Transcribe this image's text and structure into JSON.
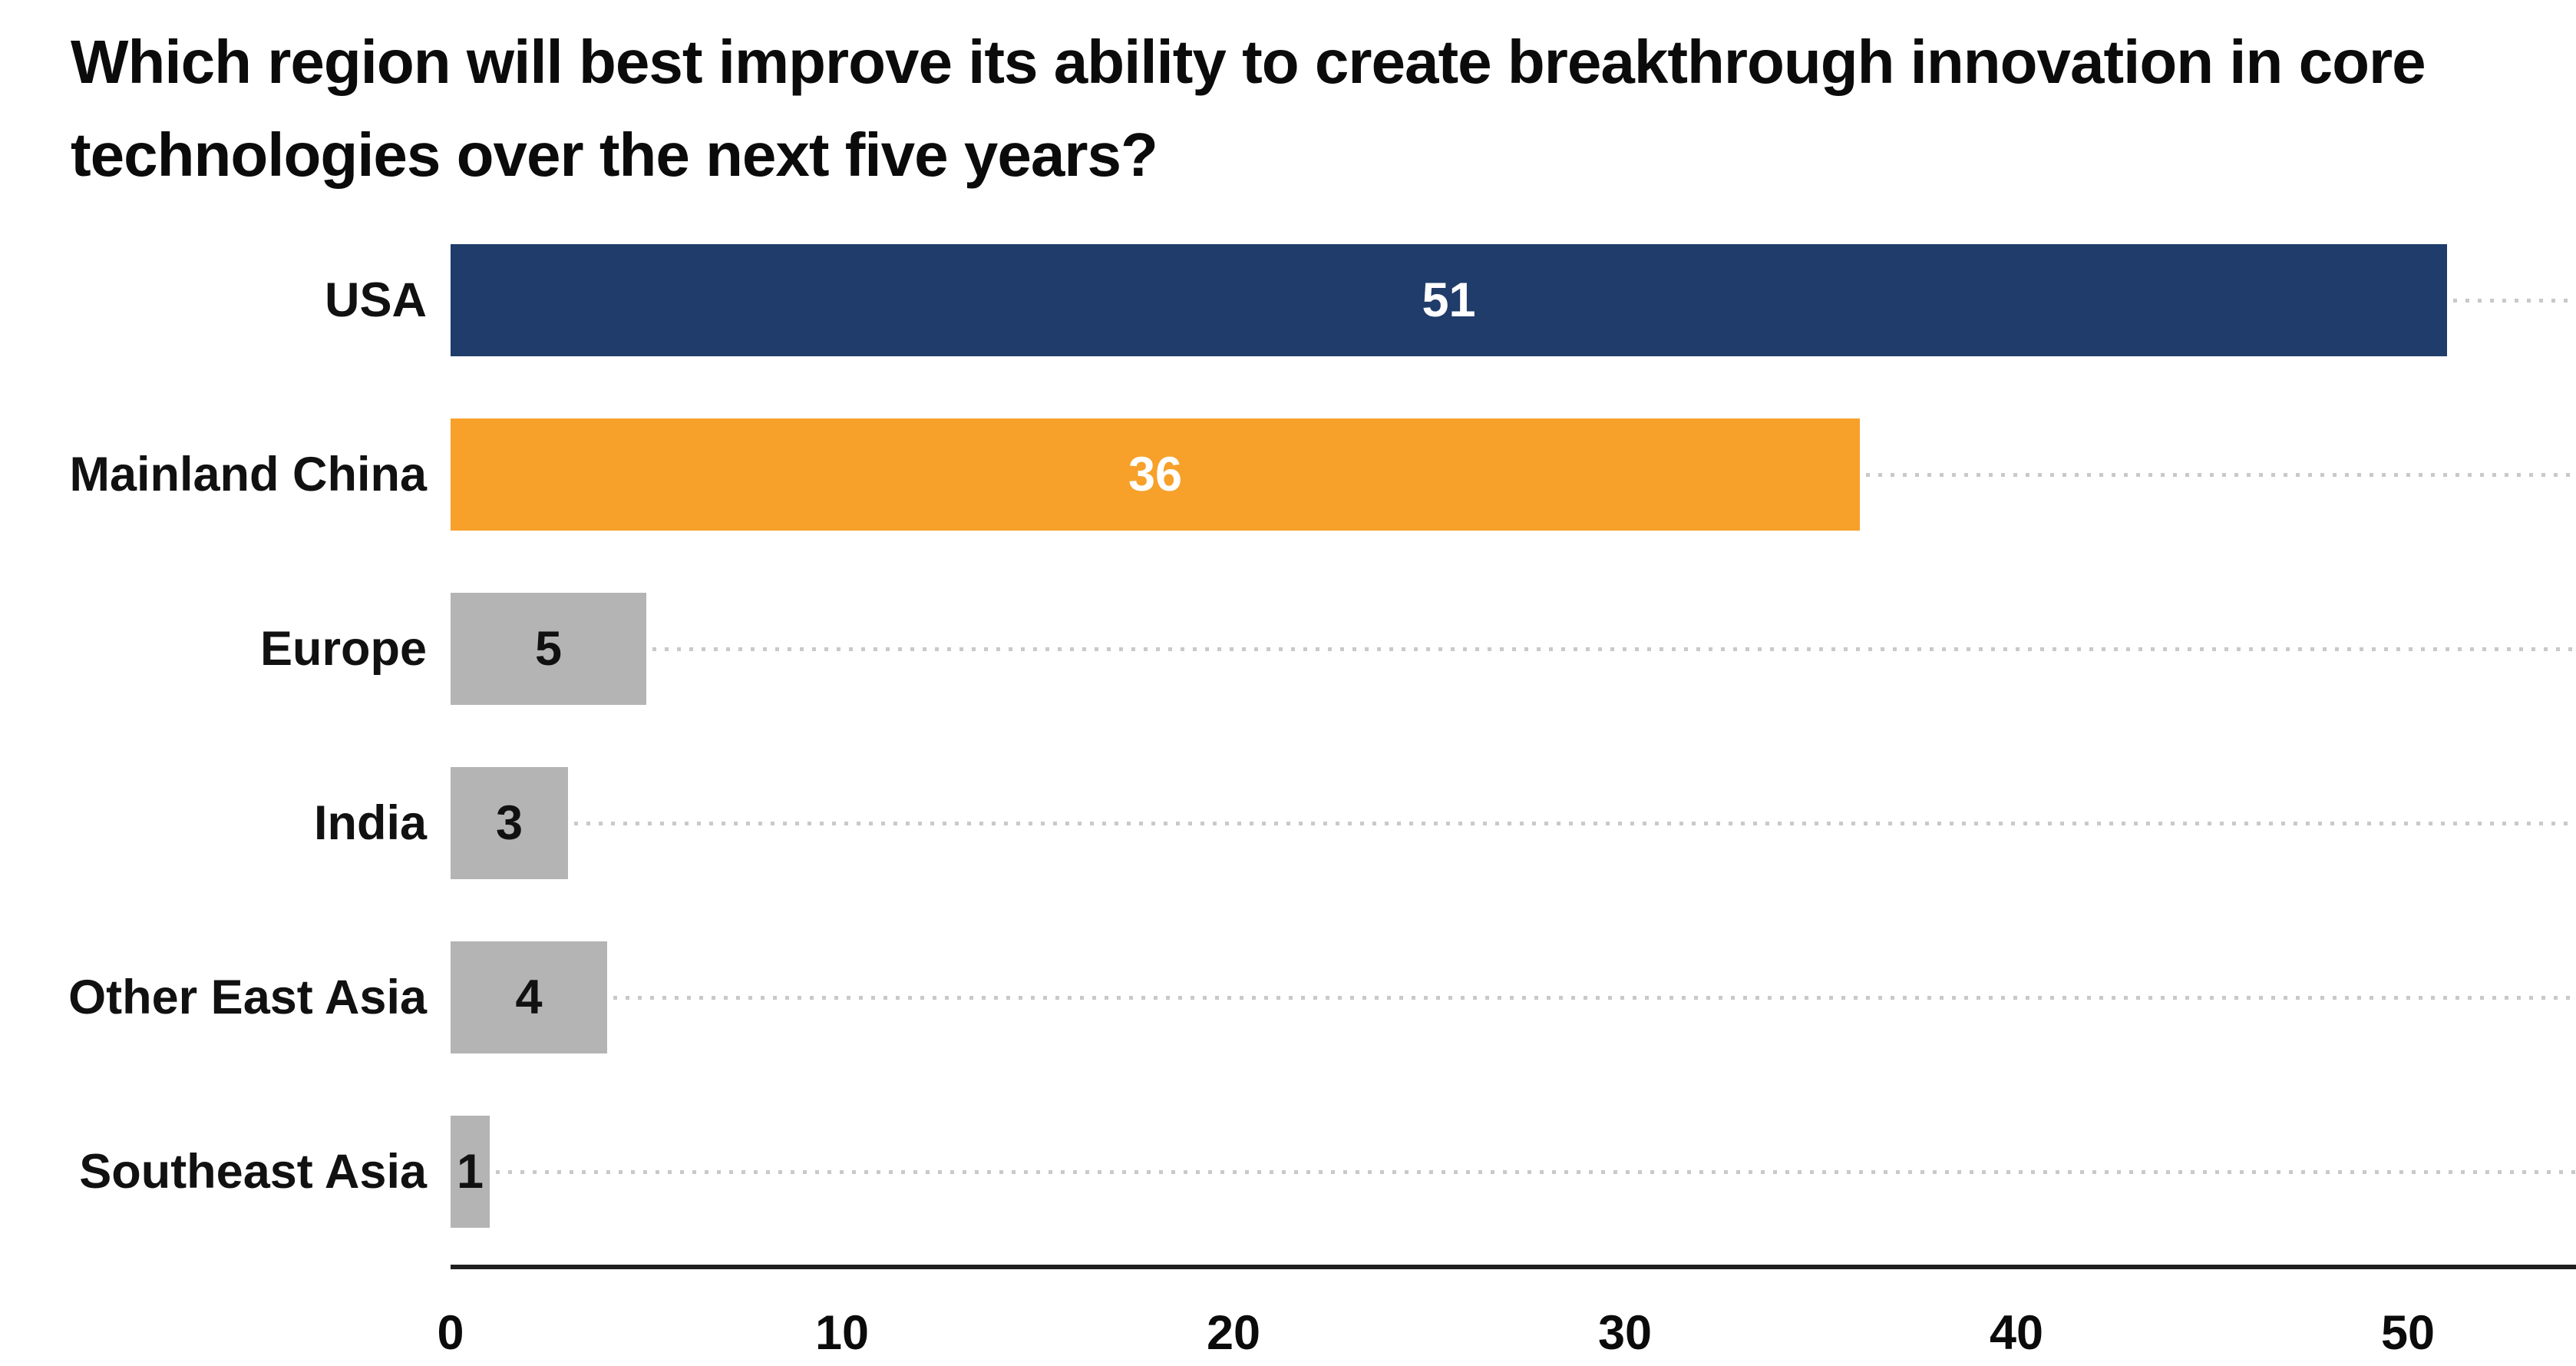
{
  "page": {
    "background": "#ffffff"
  },
  "chart_data": {
    "type": "bar",
    "orientation": "horizontal",
    "title": "Which region will best improve its ability to create breakthrough innovation in core technologies over the next five years?",
    "title_lines": [
      "Which region will best improve its ability to create breakthrough innovation in core",
      "technologies over the next five years?"
    ],
    "categories": [
      "USA",
      "Mainland China",
      "Europe",
      "India",
      "Other East Asia",
      "Southeast Asia"
    ],
    "values": [
      51,
      36,
      5,
      3,
      4,
      1
    ],
    "value_labels": [
      "51",
      "36",
      "5",
      "3",
      "4",
      "1"
    ],
    "bar_colors": [
      "#1f3c6a",
      "#f7a02a",
      "#b4b4b4",
      "#b4b4b4",
      "#b4b4b4",
      "#b4b4b4"
    ],
    "value_label_colors": [
      "#ffffff",
      "#ffffff",
      "#111111",
      "#111111",
      "#111111",
      "#111111"
    ],
    "xlabel": "",
    "ylabel": "",
    "xticks": [
      0,
      10,
      20,
      30,
      40,
      50
    ],
    "xtick_labels": [
      "0",
      "10",
      "20",
      "30",
      "40",
      "50"
    ],
    "xlim": [
      0,
      54.3
    ],
    "grid": "dotted leader line per row, from bar end to right edge",
    "legend": "none",
    "colors": {
      "navy": "#1f3c6a",
      "orange": "#f7a02a",
      "gray": "#b4b4b4",
      "dotted_line": "#c9c9c9",
      "axis_line": "#1f1f1f",
      "text": "#0b0b0b"
    }
  }
}
